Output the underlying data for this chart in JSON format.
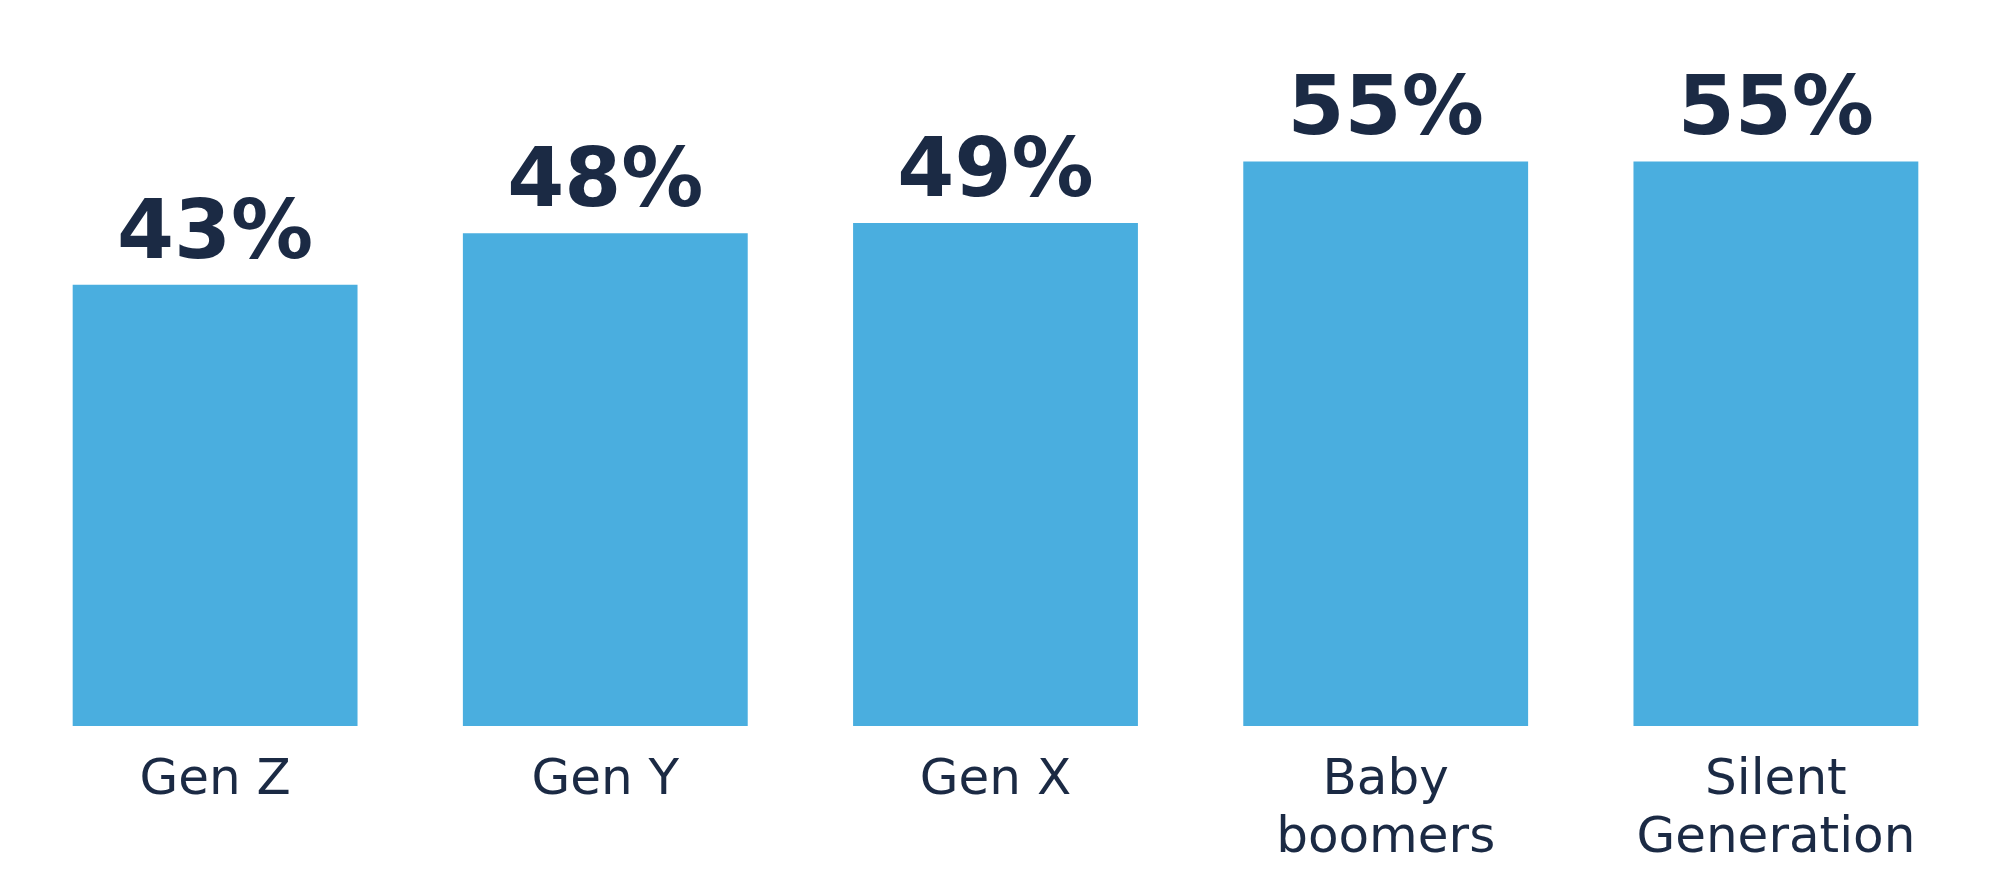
{
  "chart_data": {
    "type": "bar",
    "categories": [
      "Gen Z",
      "Gen Y",
      "Gen X",
      "Baby boomers",
      "Silent Generation"
    ],
    "values": [
      43,
      48,
      49,
      55,
      55
    ],
    "value_labels": [
      "43%",
      "48%",
      "49%",
      "55%",
      "55%"
    ],
    "color": "#4aaedf",
    "grid": false
  }
}
